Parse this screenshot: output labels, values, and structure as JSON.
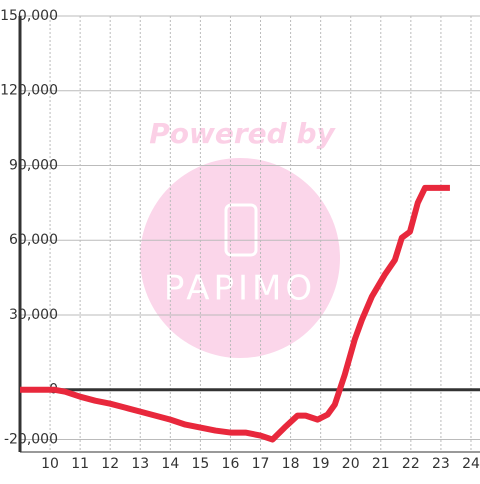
{
  "chart_data": {
    "type": "line",
    "watermark": {
      "text": "Powered by",
      "brand": "PAPIMO"
    },
    "x": [
      9,
      10.13,
      10.5,
      11,
      11.5,
      12,
      12.5,
      13,
      13.5,
      14,
      14.5,
      15,
      15.5,
      16,
      16.5,
      17,
      17.4,
      17.8,
      18.23,
      18.5,
      18.9,
      19.23,
      19.47,
      19.8,
      20.13,
      20.37,
      20.7,
      21.13,
      21.47,
      21.7,
      21.97,
      22.23,
      22.47,
      23.3
    ],
    "series": [
      {
        "color": "#e8283c",
        "values": [
          0,
          0,
          -800,
          -2800,
          -4400,
          -5600,
          -7200,
          -8800,
          -10400,
          -12000,
          -14000,
          -15200,
          -16400,
          -17200,
          -17200,
          -18400,
          -20000,
          -15200,
          -10400,
          -10400,
          -12000,
          -10000,
          -6000,
          6000,
          20000,
          28000,
          37300,
          46100,
          52100,
          61000,
          63400,
          75000,
          81000,
          81000
        ]
      }
    ],
    "xlim": [
      9,
      24.3
    ],
    "xticks": [
      10,
      11,
      12,
      13,
      14,
      15,
      16,
      17,
      18,
      19,
      20,
      21,
      22,
      23,
      24
    ],
    "ylim": [
      -25000,
      150000
    ],
    "yticks": [
      {
        "value": -20000,
        "label": "-20,000"
      },
      0,
      {
        "value": 30000,
        "label": "30,000"
      },
      {
        "value": 60000,
        "label": "60,000"
      },
      {
        "value": 90000,
        "label": "90,000"
      },
      {
        "value": 120000,
        "label": "120,000"
      },
      {
        "value": 150000,
        "label": "150,000"
      }
    ],
    "grid": true
  }
}
